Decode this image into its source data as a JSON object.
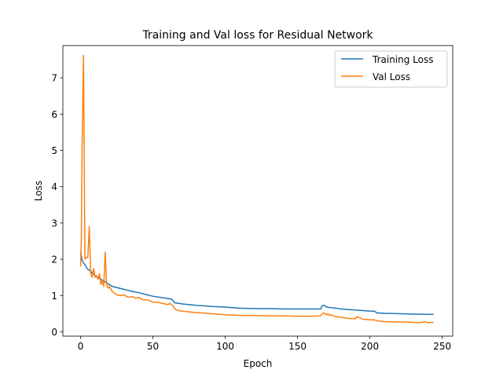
{
  "chart_data": {
    "type": "line",
    "title": "Training and Val loss for Residual Network",
    "xlabel": "Epoch",
    "ylabel": "Loss",
    "xlim": [
      -12.25,
      257.25
    ],
    "ylim": [
      -0.12,
      7.89
    ],
    "xticks": [
      0,
      50,
      100,
      150,
      200,
      250
    ],
    "yticks": [
      0,
      1,
      2,
      3,
      4,
      5,
      6,
      7
    ],
    "grid": false,
    "legend": {
      "position": "top-right"
    },
    "series": [
      {
        "name": "Training Loss",
        "color": "#1f77b4",
        "x": [
          0,
          1,
          2,
          3,
          4,
          5,
          6,
          7,
          8,
          9,
          10,
          11,
          12,
          13,
          14,
          15,
          16,
          17,
          18,
          20,
          22,
          25,
          30,
          35,
          40,
          45,
          50,
          55,
          60,
          63,
          65,
          70,
          80,
          90,
          100,
          110,
          120,
          130,
          140,
          150,
          160,
          166,
          167,
          168,
          169,
          170,
          172,
          175,
          180,
          190,
          200,
          203,
          205,
          210,
          220,
          230,
          240,
          244
        ],
        "y": [
          2.2,
          1.98,
          1.9,
          1.85,
          1.78,
          1.72,
          1.7,
          1.68,
          1.62,
          1.6,
          1.55,
          1.52,
          1.5,
          1.48,
          1.45,
          1.42,
          1.4,
          1.38,
          1.35,
          1.3,
          1.25,
          1.22,
          1.17,
          1.12,
          1.08,
          1.03,
          0.98,
          0.95,
          0.92,
          0.9,
          0.8,
          0.77,
          0.73,
          0.7,
          0.68,
          0.65,
          0.64,
          0.64,
          0.63,
          0.63,
          0.63,
          0.63,
          0.72,
          0.73,
          0.72,
          0.68,
          0.67,
          0.66,
          0.63,
          0.6,
          0.57,
          0.57,
          0.52,
          0.51,
          0.5,
          0.49,
          0.48,
          0.48
        ]
      },
      {
        "name": "Val Loss",
        "color": "#ff7f0e",
        "x": [
          0,
          0.5,
          1,
          2,
          3,
          4,
          5,
          6,
          7,
          8,
          9,
          10,
          11,
          12,
          13,
          14,
          15,
          16,
          17,
          18,
          19,
          20,
          22,
          24,
          26,
          28,
          30,
          33,
          36,
          38,
          40,
          43,
          46,
          50,
          55,
          60,
          62,
          64,
          66,
          70,
          80,
          90,
          100,
          110,
          120,
          130,
          140,
          150,
          160,
          166,
          167,
          168,
          169,
          170,
          171,
          172,
          173,
          175,
          180,
          185,
          190,
          191,
          195,
          200,
          203,
          205,
          210,
          220,
          225,
          230,
          235,
          238,
          240,
          244
        ],
        "y": [
          1.8,
          2.5,
          5.0,
          7.62,
          2.0,
          2.05,
          2.05,
          2.9,
          1.6,
          1.5,
          1.75,
          1.5,
          1.55,
          1.45,
          1.6,
          1.3,
          1.4,
          1.25,
          2.2,
          1.3,
          1.2,
          1.25,
          1.1,
          1.05,
          1.0,
          1.0,
          1.02,
          0.95,
          0.97,
          0.92,
          0.95,
          0.88,
          0.88,
          0.82,
          0.8,
          0.75,
          0.78,
          0.7,
          0.6,
          0.57,
          0.53,
          0.5,
          0.47,
          0.45,
          0.45,
          0.44,
          0.44,
          0.43,
          0.43,
          0.44,
          0.5,
          0.52,
          0.5,
          0.47,
          0.5,
          0.45,
          0.47,
          0.43,
          0.4,
          0.37,
          0.36,
          0.42,
          0.35,
          0.33,
          0.33,
          0.3,
          0.28,
          0.27,
          0.27,
          0.26,
          0.25,
          0.28,
          0.25,
          0.26
        ]
      }
    ]
  }
}
